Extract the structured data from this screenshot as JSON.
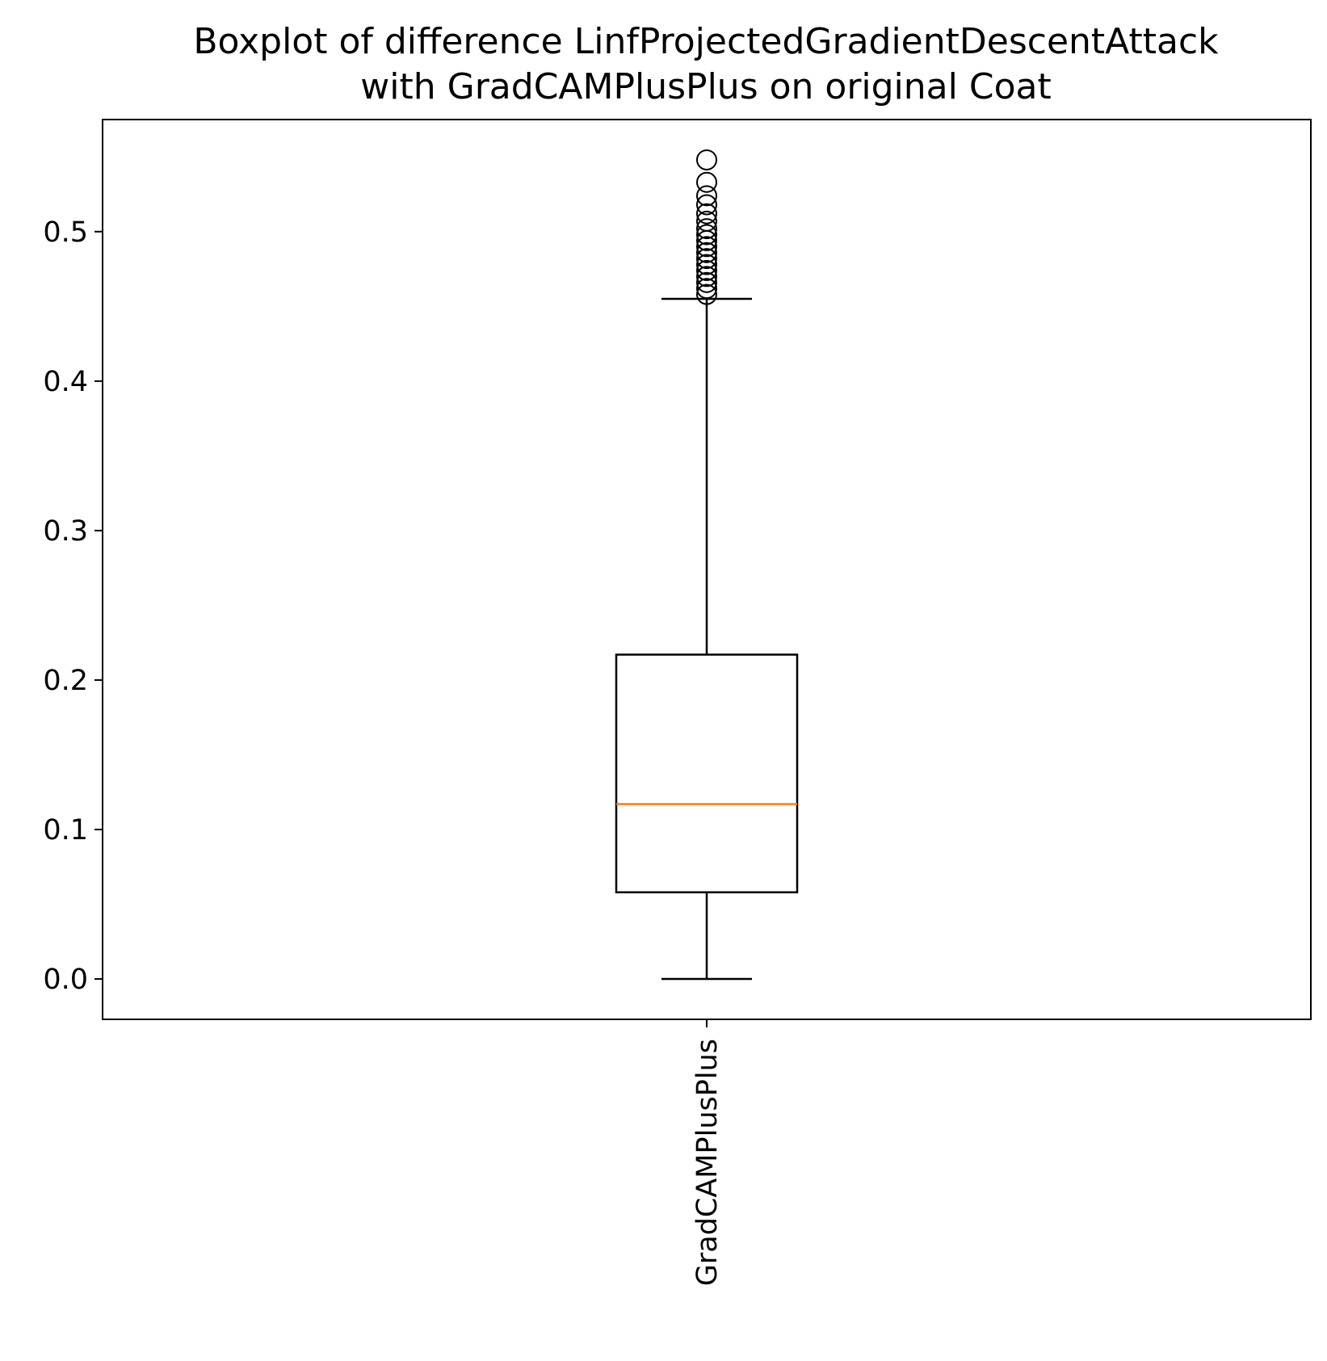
{
  "chart_data": {
    "type": "boxplot",
    "title_lines": [
      "Boxplot of difference LinfProjectedGradientDescentAttack",
      "with GradCAMPlusPlus on original Coat"
    ],
    "xlabel": "",
    "ylabel": "",
    "categories": [
      "GradCAMPlusPlus"
    ],
    "ylim": [
      -0.027,
      0.575
    ],
    "yticks": [
      0.0,
      0.1,
      0.2,
      0.3,
      0.4,
      0.5
    ],
    "ytick_labels": [
      "0.0",
      "0.1",
      "0.2",
      "0.3",
      "0.4",
      "0.5"
    ],
    "grid": false,
    "boxes": [
      {
        "category": "GradCAMPlusPlus",
        "whisker_low": 0.0,
        "q1": 0.058,
        "median": 0.117,
        "q3": 0.217,
        "whisker_high": 0.455,
        "outliers": [
          0.458,
          0.462,
          0.466,
          0.47,
          0.474,
          0.478,
          0.482,
          0.486,
          0.49,
          0.494,
          0.498,
          0.502,
          0.507,
          0.512,
          0.518,
          0.524,
          0.533,
          0.548
        ]
      }
    ],
    "colors": {
      "box": "#000000",
      "median": "#ff7f0e",
      "outlier_edge": "#000000"
    }
  }
}
